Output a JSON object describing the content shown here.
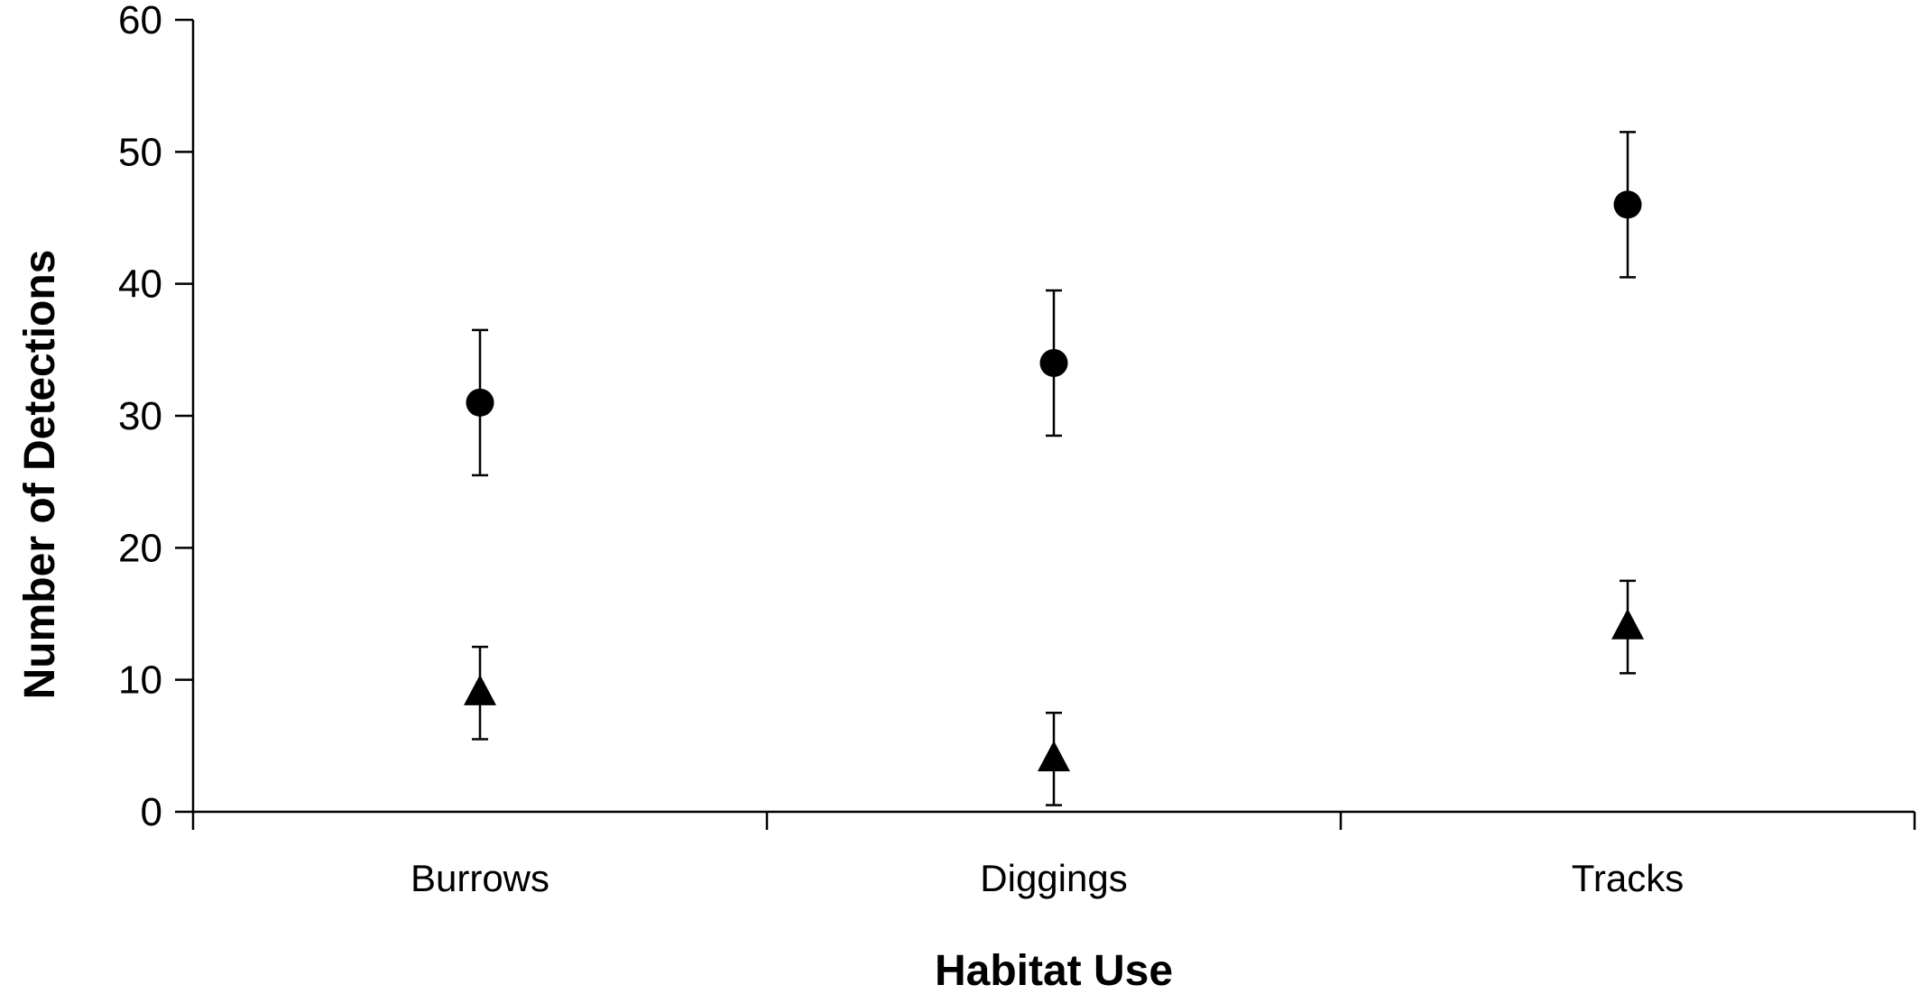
{
  "chart_data": {
    "type": "scatter",
    "categories": [
      "Burrows",
      "Diggings",
      "Tracks"
    ],
    "xlabel": "Habitat Use",
    "ylabel": "Number of Detections",
    "ylim": [
      0,
      60
    ],
    "yticks": [
      0,
      10,
      20,
      30,
      40,
      50,
      60
    ],
    "grid": false,
    "legend": "none",
    "series": [
      {
        "marker": "circle",
        "values": [
          31,
          34,
          46
        ],
        "err_low": [
          25.5,
          28.5,
          40.5
        ],
        "err_high": [
          36.5,
          39.5,
          51.5
        ]
      },
      {
        "marker": "triangle",
        "values": [
          9,
          4,
          14
        ],
        "err_low": [
          5.5,
          0.5,
          10.5
        ],
        "err_high": [
          12.5,
          7.5,
          17.5
        ]
      }
    ],
    "colors": {
      "marker": "#000000",
      "axis": "#000000"
    }
  }
}
